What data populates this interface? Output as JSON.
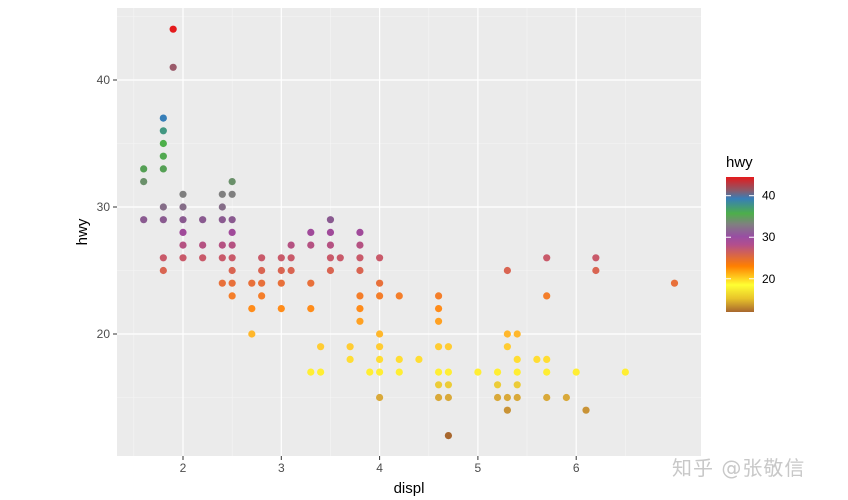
{
  "chart_data": {
    "type": "scatter",
    "title": "",
    "xlabel": "displ",
    "ylabel": "hwy",
    "xlim": [
      1.35,
      7.3
    ],
    "ylim": [
      10.2,
      45.5
    ],
    "x_ticks": [
      2,
      3,
      4,
      5,
      6
    ],
    "y_ticks": [
      20,
      30,
      40
    ],
    "grid": true,
    "color_by": "hwy",
    "legend": {
      "title": "hwy",
      "position": "right",
      "type": "colorbar",
      "ticks": [
        40,
        30,
        20
      ],
      "range": [
        12,
        44
      ],
      "palette": [
        "#b35806",
        "#ffff33",
        "#ff7f00",
        "#984ea3",
        "#4daf4a",
        "#377eb8",
        "#e41a1c"
      ]
    },
    "points": [
      {
        "x": 1.9,
        "y": 44
      },
      {
        "x": 1.9,
        "y": 41
      },
      {
        "x": 1.8,
        "y": 37
      },
      {
        "x": 1.8,
        "y": 36
      },
      {
        "x": 1.8,
        "y": 35
      },
      {
        "x": 1.8,
        "y": 34
      },
      {
        "x": 1.8,
        "y": 33
      },
      {
        "x": 1.6,
        "y": 33
      },
      {
        "x": 1.6,
        "y": 32
      },
      {
        "x": 2.5,
        "y": 32
      },
      {
        "x": 2.0,
        "y": 31
      },
      {
        "x": 2.4,
        "y": 31
      },
      {
        "x": 2.5,
        "y": 31
      },
      {
        "x": 1.8,
        "y": 30
      },
      {
        "x": 2.0,
        "y": 30
      },
      {
        "x": 2.4,
        "y": 30
      },
      {
        "x": 1.6,
        "y": 29
      },
      {
        "x": 1.8,
        "y": 29
      },
      {
        "x": 2.0,
        "y": 29
      },
      {
        "x": 2.2,
        "y": 29
      },
      {
        "x": 2.4,
        "y": 29
      },
      {
        "x": 2.5,
        "y": 29
      },
      {
        "x": 3.5,
        "y": 29
      },
      {
        "x": 2.0,
        "y": 28
      },
      {
        "x": 2.5,
        "y": 28
      },
      {
        "x": 3.3,
        "y": 28
      },
      {
        "x": 3.5,
        "y": 28
      },
      {
        "x": 3.8,
        "y": 28
      },
      {
        "x": 2.0,
        "y": 27
      },
      {
        "x": 2.2,
        "y": 27
      },
      {
        "x": 2.4,
        "y": 27
      },
      {
        "x": 2.5,
        "y": 27
      },
      {
        "x": 3.1,
        "y": 27
      },
      {
        "x": 3.3,
        "y": 27
      },
      {
        "x": 3.5,
        "y": 27
      },
      {
        "x": 3.8,
        "y": 27
      },
      {
        "x": 1.8,
        "y": 26
      },
      {
        "x": 2.0,
        "y": 26
      },
      {
        "x": 2.2,
        "y": 26
      },
      {
        "x": 2.4,
        "y": 26
      },
      {
        "x": 2.5,
        "y": 26
      },
      {
        "x": 2.8,
        "y": 26
      },
      {
        "x": 3.0,
        "y": 26
      },
      {
        "x": 3.1,
        "y": 26
      },
      {
        "x": 3.5,
        "y": 26
      },
      {
        "x": 3.6,
        "y": 26
      },
      {
        "x": 3.8,
        "y": 26
      },
      {
        "x": 4.0,
        "y": 26
      },
      {
        "x": 5.7,
        "y": 26
      },
      {
        "x": 6.2,
        "y": 26
      },
      {
        "x": 1.8,
        "y": 25
      },
      {
        "x": 2.5,
        "y": 25
      },
      {
        "x": 2.8,
        "y": 25
      },
      {
        "x": 3.0,
        "y": 25
      },
      {
        "x": 3.1,
        "y": 25
      },
      {
        "x": 3.5,
        "y": 25
      },
      {
        "x": 3.8,
        "y": 25
      },
      {
        "x": 5.3,
        "y": 25
      },
      {
        "x": 6.2,
        "y": 25
      },
      {
        "x": 2.4,
        "y": 24
      },
      {
        "x": 2.5,
        "y": 24
      },
      {
        "x": 2.7,
        "y": 24
      },
      {
        "x": 2.8,
        "y": 24
      },
      {
        "x": 3.0,
        "y": 24
      },
      {
        "x": 3.3,
        "y": 24
      },
      {
        "x": 4.0,
        "y": 24
      },
      {
        "x": 7.0,
        "y": 24
      },
      {
        "x": 2.5,
        "y": 23
      },
      {
        "x": 2.8,
        "y": 23
      },
      {
        "x": 3.8,
        "y": 23
      },
      {
        "x": 4.0,
        "y": 23
      },
      {
        "x": 4.2,
        "y": 23
      },
      {
        "x": 4.6,
        "y": 23
      },
      {
        "x": 5.7,
        "y": 23
      },
      {
        "x": 2.7,
        "y": 22
      },
      {
        "x": 3.0,
        "y": 22
      },
      {
        "x": 3.3,
        "y": 22
      },
      {
        "x": 3.8,
        "y": 22
      },
      {
        "x": 4.6,
        "y": 22
      },
      {
        "x": 3.8,
        "y": 21
      },
      {
        "x": 4.6,
        "y": 21
      },
      {
        "x": 2.7,
        "y": 20
      },
      {
        "x": 4.0,
        "y": 20
      },
      {
        "x": 5.3,
        "y": 20
      },
      {
        "x": 5.4,
        "y": 20
      },
      {
        "x": 3.4,
        "y": 19
      },
      {
        "x": 3.7,
        "y": 19
      },
      {
        "x": 4.0,
        "y": 19
      },
      {
        "x": 4.6,
        "y": 19
      },
      {
        "x": 4.7,
        "y": 19
      },
      {
        "x": 5.3,
        "y": 19
      },
      {
        "x": 3.7,
        "y": 18
      },
      {
        "x": 4.0,
        "y": 18
      },
      {
        "x": 4.2,
        "y": 18
      },
      {
        "x": 4.4,
        "y": 18
      },
      {
        "x": 5.4,
        "y": 18
      },
      {
        "x": 5.6,
        "y": 18
      },
      {
        "x": 5.7,
        "y": 18
      },
      {
        "x": 3.3,
        "y": 17
      },
      {
        "x": 3.4,
        "y": 17
      },
      {
        "x": 3.9,
        "y": 17
      },
      {
        "x": 4.0,
        "y": 17
      },
      {
        "x": 4.2,
        "y": 17
      },
      {
        "x": 4.6,
        "y": 17
      },
      {
        "x": 4.7,
        "y": 17
      },
      {
        "x": 5.0,
        "y": 17
      },
      {
        "x": 5.2,
        "y": 17
      },
      {
        "x": 5.4,
        "y": 17
      },
      {
        "x": 5.7,
        "y": 17
      },
      {
        "x": 6.0,
        "y": 17
      },
      {
        "x": 6.5,
        "y": 17
      },
      {
        "x": 4.6,
        "y": 16
      },
      {
        "x": 4.7,
        "y": 16
      },
      {
        "x": 5.2,
        "y": 16
      },
      {
        "x": 5.4,
        "y": 16
      },
      {
        "x": 4.0,
        "y": 15
      },
      {
        "x": 4.6,
        "y": 15
      },
      {
        "x": 4.7,
        "y": 15
      },
      {
        "x": 5.2,
        "y": 15
      },
      {
        "x": 5.3,
        "y": 15
      },
      {
        "x": 5.4,
        "y": 15
      },
      {
        "x": 5.7,
        "y": 15
      },
      {
        "x": 5.9,
        "y": 15
      },
      {
        "x": 5.3,
        "y": 14
      },
      {
        "x": 6.1,
        "y": 14
      },
      {
        "x": 4.7,
        "y": 12
      }
    ]
  },
  "watermark": "知乎 @张敬信"
}
